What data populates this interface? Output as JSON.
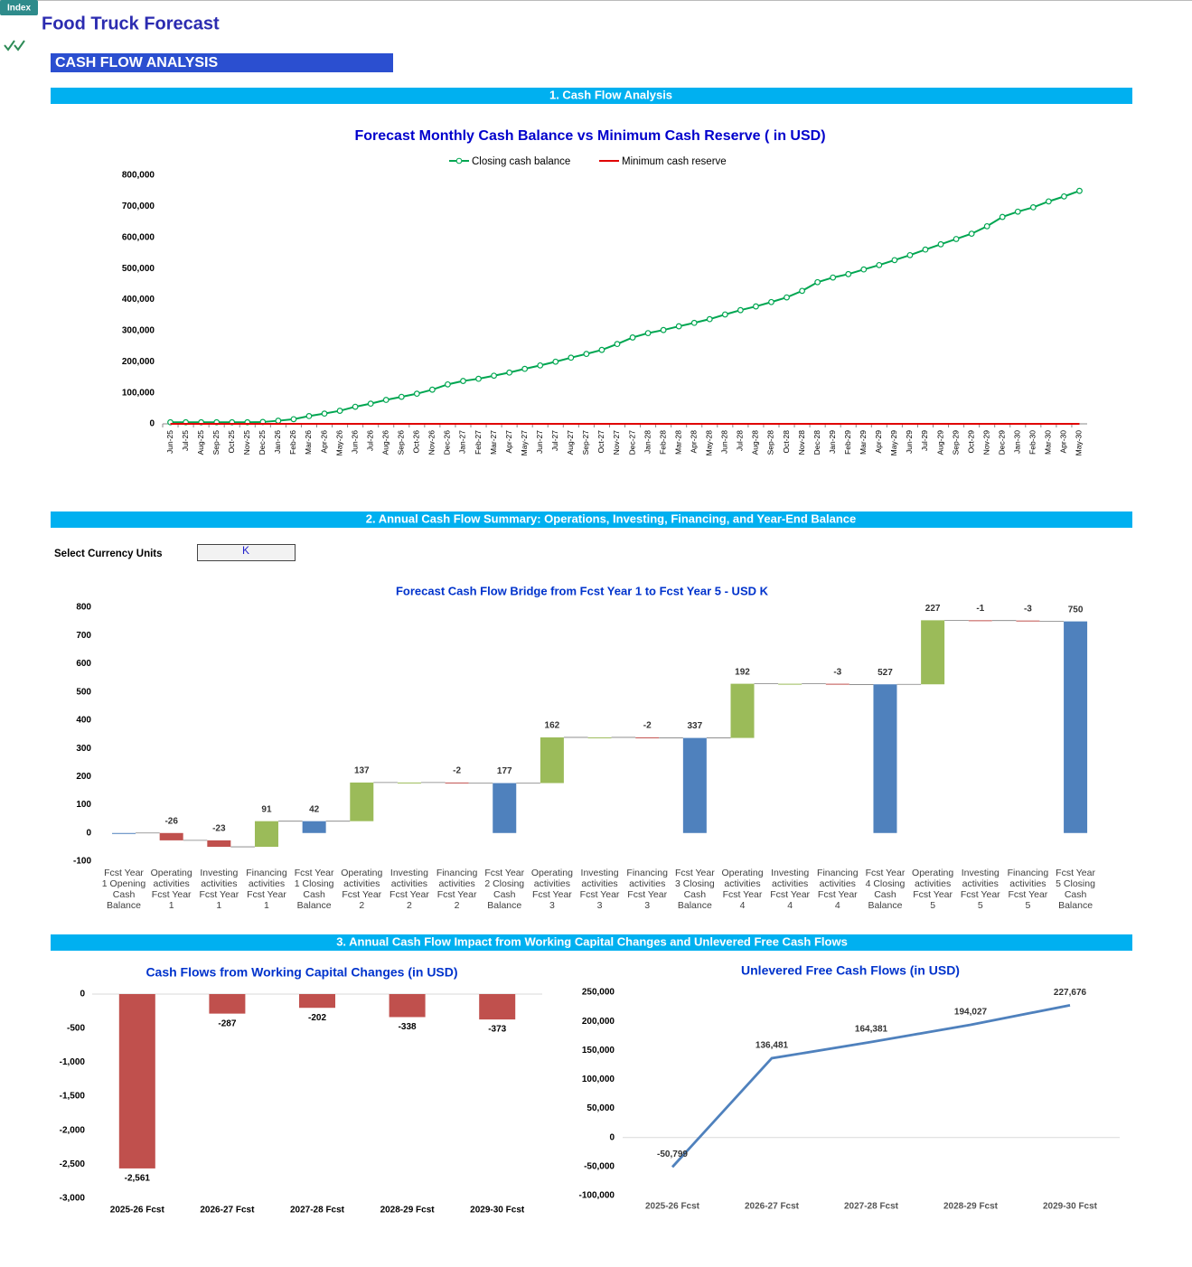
{
  "index_button": "Index",
  "title": "Food Truck Forecast",
  "page_heading": "CASH FLOW ANALYSIS",
  "sections": [
    "1. Cash Flow Analysis",
    "2. Annual Cash Flow Summary: Operations, Investing, Financing, and Year-End Balance",
    "3. Annual Cash Flow Impact from Working Capital Changes and Unlevered Free Cash Flows"
  ],
  "currency_selector": {
    "label": "Select Currency Units",
    "value": "K"
  },
  "chart_data": [
    {
      "type": "line",
      "title": "Forecast Monthly Cash Balance vs Minimum Cash Reserve ( in USD)",
      "legend": "top",
      "categories": [
        "Jun-25",
        "Jul-25",
        "Aug-25",
        "Sep-25",
        "Oct-25",
        "Nov-25",
        "Dec-25",
        "Jan-26",
        "Feb-26",
        "Mar-26",
        "Apr-26",
        "May-26",
        "Jun-26",
        "Jul-26",
        "Aug-26",
        "Sep-26",
        "Oct-26",
        "Nov-26",
        "Dec-26",
        "Jan-27",
        "Feb-27",
        "Mar-27",
        "Apr-27",
        "May-27",
        "Jun-27",
        "Jul-27",
        "Aug-27",
        "Sep-27",
        "Oct-27",
        "Nov-27",
        "Dec-27",
        "Jan-28",
        "Feb-28",
        "Mar-28",
        "Apr-28",
        "May-28",
        "Jun-28",
        "Jul-28",
        "Aug-28",
        "Sep-28",
        "Oct-28",
        "Nov-28",
        "Dec-28",
        "Jan-29",
        "Feb-29",
        "Mar-29",
        "Apr-29",
        "May-29",
        "Jun-29",
        "Jul-29",
        "Aug-29",
        "Sep-29",
        "Oct-29",
        "Nov-29",
        "Dec-29",
        "Jan-30",
        "Feb-30",
        "Mar-30",
        "Apr-30",
        "May-30"
      ],
      "series": [
        {
          "name": "Closing cash balance",
          "color": "#00a651",
          "marker": "circle",
          "values": [
            5000,
            5000,
            5000,
            5000,
            5000,
            5000,
            6000,
            10000,
            15000,
            25000,
            33000,
            42000,
            55000,
            65000,
            77000,
            87000,
            97000,
            110000,
            127000,
            138000,
            145000,
            155000,
            165000,
            177000,
            188000,
            200000,
            213000,
            225000,
            238000,
            257000,
            278000,
            292000,
            302000,
            314000,
            325000,
            337000,
            352000,
            366000,
            378000,
            392000,
            407000,
            428000,
            456000,
            471000,
            482000,
            497000,
            511000,
            527000,
            543000,
            561000,
            578000,
            595000,
            612000,
            636000,
            666000,
            683000,
            697000,
            716000,
            732000,
            750000
          ]
        },
        {
          "name": "Minimum cash reserve",
          "color": "#e00000",
          "values": [
            0,
            0,
            0,
            0,
            0,
            0,
            0,
            0,
            0,
            0,
            0,
            0,
            0,
            0,
            0,
            0,
            0,
            0,
            0,
            0,
            0,
            0,
            0,
            0,
            0,
            0,
            0,
            0,
            0,
            0,
            0,
            0,
            0,
            0,
            0,
            0,
            0,
            0,
            0,
            0,
            0,
            0,
            0,
            0,
            0,
            0,
            0,
            0,
            0,
            0,
            0,
            0,
            0,
            0,
            0,
            0,
            0,
            0,
            0,
            0
          ]
        }
      ],
      "ylim": [
        0,
        800000
      ],
      "yticks": [
        0,
        {
          "value": 100000,
          "label": "100,000"
        },
        {
          "value": 200000,
          "label": "200,000"
        },
        {
          "value": 300000,
          "label": "300,000"
        },
        {
          "value": 400000,
          "label": "400,000"
        },
        {
          "value": 500000,
          "label": "500,000"
        },
        {
          "value": 600000,
          "label": "600,000"
        },
        {
          "value": 700000,
          "label": "700,000"
        },
        {
          "value": 800000,
          "label": "800,000"
        }
      ],
      "grid": false
    },
    {
      "type": "waterfall",
      "title": "Forecast Cash Flow Bridge from Fcst Year 1 to Fcst Year 5 - USD K",
      "categories": [
        "Fcst Year 1 Opening Cash Balance",
        "Operating activities Fcst Year 1",
        "Investing activities Fcst Year 1",
        "Financing activities Fcst Year 1",
        "Fcst Year 1 Closing Cash Balance",
        "Operating activities Fcst Year 2",
        "Investing activities Fcst Year 2",
        "Financing activities Fcst Year 2",
        "Fcst Year 2 Closing Cash Balance",
        "Operating activities Fcst Year 3",
        "Investing activities Fcst Year 3",
        "Financing activities Fcst Year 3",
        "Fcst Year 3 Closing Cash Balance",
        "Operating activities Fcst Year 4",
        "Investing activities Fcst Year 4",
        "Financing activities Fcst Year 4",
        "Fcst Year 4 Closing Cash Balance",
        "Operating activities Fcst Year 5",
        "Investing activities Fcst Year 5",
        "Financing activities Fcst Year 5",
        "Fcst Year 5 Closing Cash Balance"
      ],
      "values": [
        0,
        -26,
        -23,
        91,
        42,
        137,
        0,
        -2,
        177,
        162,
        0,
        -2,
        337,
        192,
        0,
        -3,
        527,
        227,
        -1,
        -3,
        750
      ],
      "value_labels": [
        null,
        "-26",
        "-23",
        "91",
        "42",
        "137",
        null,
        "-2",
        "177",
        "162",
        null,
        "-2",
        "337",
        "192",
        null,
        "-3",
        "527",
        "227",
        "-1",
        "-3",
        "750"
      ],
      "measure": [
        "total",
        "relative",
        "relative",
        "relative",
        "total",
        "relative",
        "relative",
        "relative",
        "total",
        "relative",
        "relative",
        "relative",
        "total",
        "relative",
        "relative",
        "relative",
        "total",
        "relative",
        "relative",
        "relative",
        "total"
      ],
      "colors": {
        "total": "#4f81bd",
        "increase": "#9bbb59",
        "decrease": "#c0504d"
      },
      "ylim": [
        -100,
        800
      ],
      "yticks": [
        -100,
        0,
        100,
        200,
        300,
        400,
        500,
        600,
        700,
        800
      ],
      "grid": false
    },
    {
      "type": "bar",
      "title": "Cash Flows from Working Capital Changes (in USD)",
      "categories": [
        "2025-26 Fcst",
        "2026-27 Fcst",
        "2027-28 Fcst",
        "2028-29 Fcst",
        "2029-30 Fcst"
      ],
      "values": [
        -2561,
        -287,
        -202,
        -338,
        -373
      ],
      "value_labels": [
        "-2,561",
        "-287",
        "-202",
        "-338",
        "-373"
      ],
      "color": "#c0504d",
      "ylim": [
        -3000,
        0
      ],
      "yticks": [
        {
          "value": -3000,
          "label": "-3,000"
        },
        {
          "value": -2500,
          "label": "-2,500"
        },
        {
          "value": -2000,
          "label": "-2,000"
        },
        {
          "value": -1500,
          "label": "-1,500"
        },
        {
          "value": -1000,
          "label": "-1,000"
        },
        -500,
        0
      ],
      "grid": false
    },
    {
      "type": "line",
      "title": "Unlevered Free Cash Flows (in USD)",
      "categories": [
        "2025-26 Fcst",
        "2026-27 Fcst",
        "2027-28 Fcst",
        "2028-29 Fcst",
        "2029-30 Fcst"
      ],
      "values": [
        -50799,
        136481,
        164381,
        194027,
        227676
      ],
      "value_labels": [
        "-50,799",
        "136,481",
        "164,381",
        "194,027",
        "227,676"
      ],
      "color": "#4f81bd",
      "ylim": [
        -100000,
        250000
      ],
      "yticks": [
        {
          "value": -100000,
          "label": "-100,000"
        },
        {
          "value": -50000,
          "label": "-50,000"
        },
        0,
        {
          "value": 50000,
          "label": "50,000"
        },
        {
          "value": 100000,
          "label": "100,000"
        },
        {
          "value": 150000,
          "label": "150,000"
        },
        {
          "value": 200000,
          "label": "200,000"
        },
        {
          "value": 250000,
          "label": "250,000"
        }
      ],
      "grid": false
    }
  ]
}
